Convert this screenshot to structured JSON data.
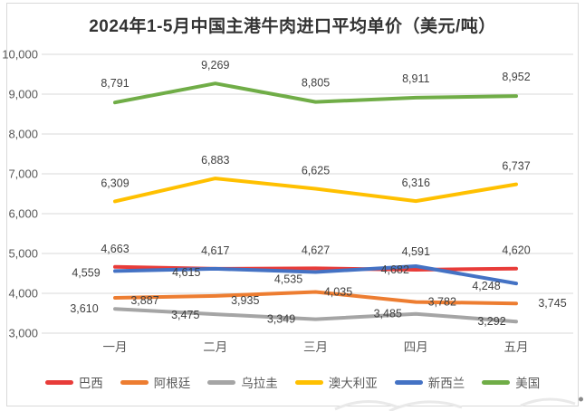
{
  "chart_data": {
    "type": "line",
    "title": "2024年1-5月中国主港牛肉进口平均单价（美元/吨）",
    "categories": [
      "一月",
      "二月",
      "三月",
      "四月",
      "五月"
    ],
    "y_ticks": [
      "10,000",
      "9,000",
      "8,000",
      "7,000",
      "6,000",
      "5,000",
      "4,000",
      "3,000"
    ],
    "ylim": [
      3000,
      10000
    ],
    "grid": "horizontal-only",
    "legend_position": "bottom",
    "data_labels_shown": true,
    "series": [
      {
        "name": "巴西",
        "color": "#e83c39",
        "values": [
          4663,
          4617,
          4627,
          4591,
          4620
        ],
        "label_offsets": [
          [
            0,
            -20
          ],
          [
            0,
            -20
          ],
          [
            0,
            -20
          ],
          [
            0,
            -20
          ],
          [
            0,
            -20
          ]
        ]
      },
      {
        "name": "阿根廷",
        "color": "#ed7d31",
        "values": [
          3887,
          3935,
          4035,
          3782,
          3745
        ],
        "label_offsets": [
          [
            33,
            3
          ],
          [
            33,
            5
          ],
          [
            25,
            0
          ],
          [
            29,
            0
          ],
          [
            40,
            0
          ]
        ]
      },
      {
        "name": "乌拉圭",
        "color": "#a5a5a5",
        "values": [
          3610,
          3475,
          3349,
          3485,
          3292
        ],
        "label_offsets": [
          [
            -34,
            0
          ],
          [
            -33,
            1
          ],
          [
            -38,
            0
          ],
          [
            -31,
            0
          ],
          [
            -27,
            0
          ]
        ]
      },
      {
        "name": "澳大利亚",
        "color": "#ffc000",
        "values": [
          6309,
          6883,
          6625,
          6316,
          6737
        ],
        "label_offsets": [
          [
            0,
            -20
          ],
          [
            0,
            -20
          ],
          [
            0,
            -20
          ],
          [
            0,
            -20
          ],
          [
            0,
            -20
          ]
        ]
      },
      {
        "name": "新西兰",
        "color": "#4472c4",
        "values": [
          4559,
          4615,
          4535,
          4682,
          4248
        ],
        "label_offsets": [
          [
            -32,
            2
          ],
          [
            -32,
            4
          ],
          [
            -30,
            8
          ],
          [
            -23,
            4
          ],
          [
            -33,
            3
          ]
        ]
      },
      {
        "name": "美国",
        "color": "#70ad47",
        "values": [
          8791,
          9269,
          8805,
          8911,
          8952
        ],
        "label_offsets": [
          [
            0,
            -21
          ],
          [
            0,
            -20
          ],
          [
            0,
            -21
          ],
          [
            0,
            -21
          ],
          [
            0,
            -21
          ]
        ]
      }
    ]
  },
  "colors": {
    "background": "#ffffff",
    "frame_border": "#d9d9d9",
    "gridline": "#d9d9d9",
    "axis_text": "#595959",
    "data_label_text": "#404040",
    "title_text": "#333333",
    "watermark": "#e9e9e9"
  }
}
